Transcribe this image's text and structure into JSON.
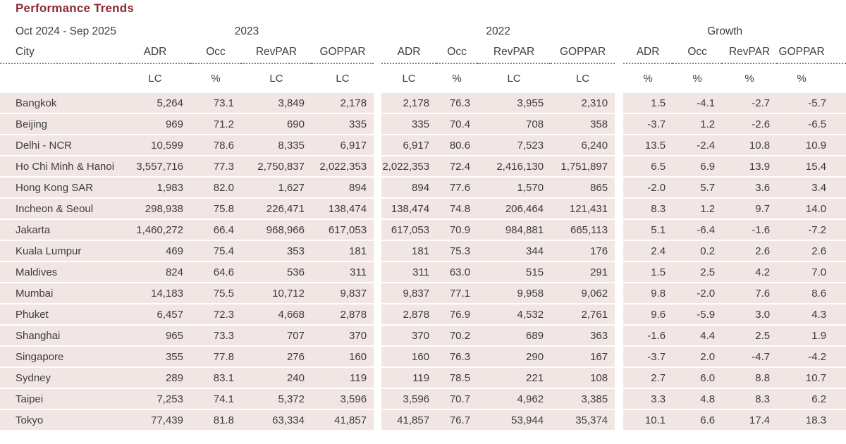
{
  "title": "Performance Trends",
  "colors": {
    "title_accent": "#8c2b35",
    "row_background": "#f2e6e4",
    "text": "#3d3d3d"
  },
  "chart_data": {
    "type": "table",
    "title": "Performance Trends",
    "period_label": "Oct 2024 - Sep 2025",
    "city_header": "City",
    "column_groups": [
      "2023",
      "2022",
      "Growth"
    ],
    "metric_headers": [
      "ADR",
      "Occ",
      "RevPAR",
      "GOPPAR"
    ],
    "units": [
      "LC",
      "%",
      "LC",
      "LC",
      "LC",
      "%",
      "LC",
      "LC",
      "%",
      "%",
      "%",
      "%"
    ],
    "rows": [
      {
        "city": "Bangkok",
        "values": [
          "5,264",
          "73.1",
          "3,849",
          "2,178",
          "2,178",
          "76.3",
          "3,955",
          "2,310",
          "1.5",
          "-4.1",
          "-2.7",
          "-5.7"
        ]
      },
      {
        "city": "Beijing",
        "values": [
          "969",
          "71.2",
          "690",
          "335",
          "335",
          "70.4",
          "708",
          "358",
          "-3.7",
          "1.2",
          "-2.6",
          "-6.5"
        ]
      },
      {
        "city": "Delhi - NCR",
        "values": [
          "10,599",
          "78.6",
          "8,335",
          "6,917",
          "6,917",
          "80.6",
          "7,523",
          "6,240",
          "13.5",
          "-2.4",
          "10.8",
          "10.9"
        ]
      },
      {
        "city": "Ho Chi Minh & Hanoi",
        "values": [
          "3,557,716",
          "77.3",
          "2,750,837",
          "2,022,353",
          "2,022,353",
          "72.4",
          "2,416,130",
          "1,751,897",
          "6.5",
          "6.9",
          "13.9",
          "15.4"
        ]
      },
      {
        "city": "Hong Kong SAR",
        "values": [
          "1,983",
          "82.0",
          "1,627",
          "894",
          "894",
          "77.6",
          "1,570",
          "865",
          "-2.0",
          "5.7",
          "3.6",
          "3.4"
        ]
      },
      {
        "city": "Incheon & Seoul",
        "values": [
          "298,938",
          "75.8",
          "226,471",
          "138,474",
          "138,474",
          "74.8",
          "206,464",
          "121,431",
          "8.3",
          "1.2",
          "9.7",
          "14.0"
        ]
      },
      {
        "city": "Jakarta",
        "values": [
          "1,460,272",
          "66.4",
          "968,966",
          "617,053",
          "617,053",
          "70.9",
          "984,881",
          "665,113",
          "5.1",
          "-6.4",
          "-1.6",
          "-7.2"
        ]
      },
      {
        "city": "Kuala Lumpur",
        "values": [
          "469",
          "75.4",
          "353",
          "181",
          "181",
          "75.3",
          "344",
          "176",
          "2.4",
          "0.2",
          "2.6",
          "2.6"
        ]
      },
      {
        "city": "Maldives",
        "values": [
          "824",
          "64.6",
          "536",
          "311",
          "311",
          "63.0",
          "515",
          "291",
          "1.5",
          "2.5",
          "4.2",
          "7.0"
        ]
      },
      {
        "city": "Mumbai",
        "values": [
          "14,183",
          "75.5",
          "10,712",
          "9,837",
          "9,837",
          "77.1",
          "9,958",
          "9,062",
          "9.8",
          "-2.0",
          "7.6",
          "8.6"
        ]
      },
      {
        "city": "Phuket",
        "values": [
          "6,457",
          "72.3",
          "4,668",
          "2,878",
          "2,878",
          "76.9",
          "4,532",
          "2,761",
          "9.6",
          "-5.9",
          "3.0",
          "4.3"
        ]
      },
      {
        "city": "Shanghai",
        "values": [
          "965",
          "73.3",
          "707",
          "370",
          "370",
          "70.2",
          "689",
          "363",
          "-1.6",
          "4.4",
          "2.5",
          "1.9"
        ]
      },
      {
        "city": "Singapore",
        "values": [
          "355",
          "77.8",
          "276",
          "160",
          "160",
          "76.3",
          "290",
          "167",
          "-3.7",
          "2.0",
          "-4.7",
          "-4.2"
        ]
      },
      {
        "city": "Sydney",
        "values": [
          "289",
          "83.1",
          "240",
          "119",
          "119",
          "78.5",
          "221",
          "108",
          "2.7",
          "6.0",
          "8.8",
          "10.7"
        ]
      },
      {
        "city": "Taipei",
        "values": [
          "7,253",
          "74.1",
          "5,372",
          "3,596",
          "3,596",
          "70.7",
          "4,962",
          "3,385",
          "3.3",
          "4.8",
          "8.3",
          "6.2"
        ]
      },
      {
        "city": "Tokyo",
        "values": [
          "77,439",
          "81.8",
          "63,334",
          "41,857",
          "41,857",
          "76.7",
          "53,944",
          "35,374",
          "10.1",
          "6.6",
          "17.4",
          "18.3"
        ]
      }
    ]
  }
}
